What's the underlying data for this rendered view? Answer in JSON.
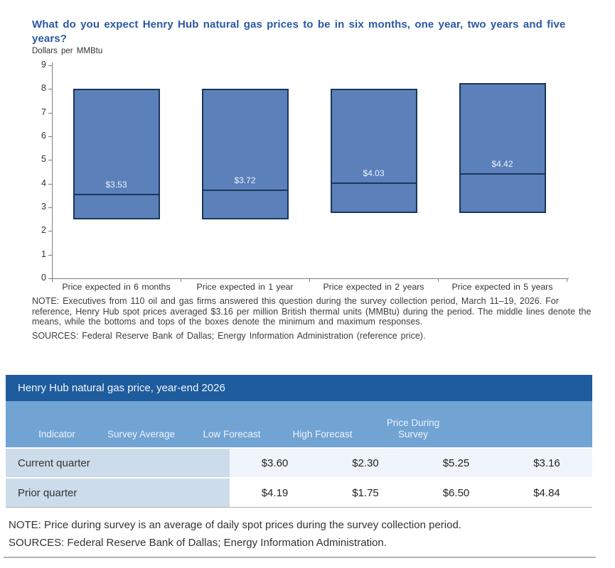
{
  "chart": {
    "title": "What do you expect Henry Hub natural gas prices to be in six months, one year, two years and five years?",
    "unit_label": "Dollars per MMBtu",
    "note": "NOTE: Executives from 110 oil and gas firms answered this question during the survey collection period, March 11–19, 2026. For reference, Henry Hub spot prices averaged $3.16 per million British thermal units (MMBtu) during the period. The middle lines denote the means, while the bottoms and tops of the boxes denote the minimum and maximum responses.",
    "sources": "SOURCES: Federal Reserve Bank of Dallas; Energy Information Administration (reference price)."
  },
  "chart_data": {
    "type": "box",
    "title": "What do you expect Henry Hub natural gas prices to be in six months, one year, two years and five years?",
    "ylabel": "Dollars per MMBtu",
    "xlabel": "",
    "ylim": [
      0,
      9
    ],
    "yticks": [
      0,
      1,
      2,
      3,
      4,
      5,
      6,
      7,
      8,
      9
    ],
    "grid": false,
    "legend": "none",
    "categories": [
      "Price expected in 6 months",
      "Price expected in 1 year",
      "Price expected in 2 years",
      "Price expected in 5 years"
    ],
    "series": [
      {
        "name": "minimum",
        "values": [
          2.5,
          2.5,
          2.75,
          2.75
        ]
      },
      {
        "name": "mean",
        "values": [
          3.53,
          3.72,
          4.03,
          4.42
        ]
      },
      {
        "name": "maximum",
        "values": [
          8.0,
          8.0,
          8.0,
          8.25
        ]
      }
    ],
    "mean_labels": [
      "$3.53",
      "$3.72",
      "$4.03",
      "$4.42"
    ],
    "colors": {
      "box_fill": "#5b80ba",
      "box_border": "#1a365c",
      "mean_line": "#1a365c",
      "mean_label_text": "#eef3fa"
    }
  },
  "table": {
    "title": "Henry Hub natural gas price, year-end 2026",
    "headers": [
      "Indicator",
      "Survey Average",
      "Low Forecast",
      "High Forecast",
      "Price During Survey"
    ],
    "rows": [
      [
        "Current quarter",
        "$3.60",
        "$2.30",
        "$5.25",
        "$3.16"
      ],
      [
        "Prior quarter",
        "$4.19",
        "$1.75",
        "$6.50",
        "$4.84"
      ]
    ],
    "note": "NOTE: Price during survey is an average of daily spot prices during the survey collection period.",
    "sources": "SOURCES: Federal Reserve Bank of Dallas; Energy Information Administration."
  },
  "colors": {
    "chart_title_text": "#2b58a5",
    "table_title_bg": "#1e5c9e",
    "table_header_bg": "#71a3d3",
    "table_label_cell_bg": "#cddcea",
    "table_row1_value_bg": "#eff5fa",
    "table_row2_value_bg": "#ffffff",
    "axis": "#7f7f7f"
  }
}
